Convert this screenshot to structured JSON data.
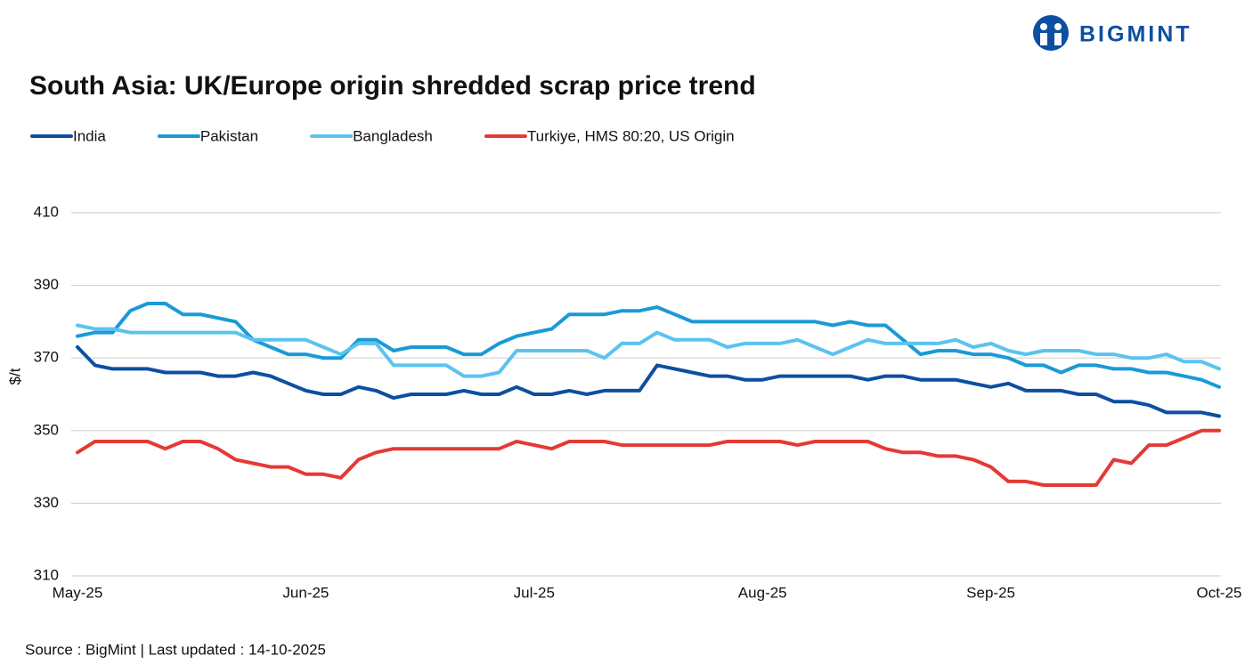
{
  "brand": "BIGMINT",
  "source": "Source : BigMint | Last updated : 14-10-2025",
  "chart_data": {
    "type": "line",
    "title": "South Asia: UK/Europe origin shredded scrap price trend",
    "y_label": "$/t",
    "categories": [
      "May-25",
      null,
      null,
      null,
      null,
      null,
      null,
      null,
      null,
      null,
      null,
      null,
      null,
      "Jun-25",
      null,
      null,
      null,
      null,
      null,
      null,
      null,
      null,
      null,
      null,
      null,
      null,
      "Jul-25",
      null,
      null,
      null,
      null,
      null,
      null,
      null,
      null,
      null,
      null,
      null,
      null,
      "Aug-25",
      null,
      null,
      null,
      null,
      null,
      null,
      null,
      null,
      null,
      null,
      null,
      null,
      "Sep-25",
      null,
      null,
      null,
      null,
      null,
      null,
      null,
      null,
      null,
      null,
      null,
      null,
      "Oct-25"
    ],
    "ylim": [
      310,
      410
    ],
    "yticks": [
      310,
      330,
      350,
      370,
      390,
      410
    ],
    "grid": true,
    "legend": "top-left",
    "series": [
      {
        "name": "India",
        "color": "#0d4fa0",
        "values": [
          373,
          368,
          367,
          367,
          367,
          366,
          366,
          366,
          365,
          365,
          366,
          365,
          363,
          361,
          360,
          360,
          362,
          361,
          359,
          360,
          360,
          360,
          361,
          360,
          360,
          362,
          360,
          360,
          361,
          360,
          361,
          361,
          361,
          368,
          367,
          366,
          365,
          365,
          364,
          364,
          365,
          365,
          365,
          365,
          365,
          364,
          365,
          365,
          364,
          364,
          364,
          363,
          362,
          363,
          361,
          361,
          361,
          360,
          360,
          358,
          358,
          357,
          355,
          355,
          355,
          354
        ]
      },
      {
        "name": "Pakistan",
        "color": "#1a9ad6",
        "values": [
          376,
          377,
          377,
          383,
          385,
          385,
          382,
          382,
          381,
          380,
          375,
          373,
          371,
          371,
          370,
          370,
          375,
          375,
          372,
          373,
          373,
          373,
          371,
          371,
          374,
          376,
          377,
          378,
          382,
          382,
          382,
          383,
          383,
          384,
          382,
          380,
          380,
          380,
          380,
          380,
          380,
          380,
          380,
          379,
          380,
          379,
          379,
          375,
          371,
          372,
          372,
          371,
          371,
          370,
          368,
          368,
          366,
          368,
          368,
          367,
          367,
          366,
          366,
          365,
          364,
          362
        ]
      },
      {
        "name": "Bangladesh",
        "color": "#5bc3ee",
        "values": [
          379,
          378,
          378,
          377,
          377,
          377,
          377,
          377,
          377,
          377,
          375,
          375,
          375,
          375,
          373,
          371,
          374,
          374,
          368,
          368,
          368,
          368,
          365,
          365,
          366,
          372,
          372,
          372,
          372,
          372,
          370,
          374,
          374,
          377,
          375,
          375,
          375,
          373,
          374,
          374,
          374,
          375,
          373,
          371,
          373,
          375,
          374,
          374,
          374,
          374,
          375,
          373,
          374,
          372,
          371,
          372,
          372,
          372,
          371,
          371,
          370,
          370,
          371,
          369,
          369,
          367
        ]
      },
      {
        "name": "Turkiye, HMS 80:20, US Origin",
        "color": "#e53935",
        "values": [
          344,
          347,
          347,
          347,
          347,
          345,
          347,
          347,
          345,
          342,
          341,
          340,
          340,
          338,
          338,
          337,
          342,
          344,
          345,
          345,
          345,
          345,
          345,
          345,
          345,
          347,
          346,
          345,
          347,
          347,
          347,
          346,
          346,
          346,
          346,
          346,
          346,
          347,
          347,
          347,
          347,
          346,
          347,
          347,
          347,
          347,
          345,
          344,
          344,
          343,
          343,
          342,
          340,
          336,
          336,
          335,
          335,
          335,
          335,
          342,
          341,
          346,
          346,
          348,
          350,
          350
        ]
      }
    ]
  }
}
